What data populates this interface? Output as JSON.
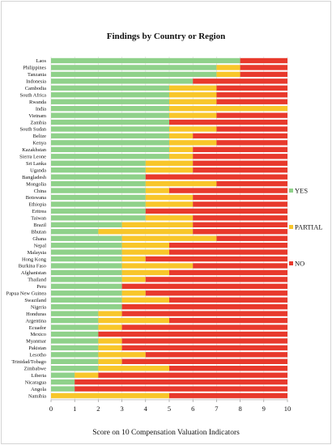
{
  "chart_data": {
    "type": "bar",
    "orientation": "horizontal",
    "stacked": true,
    "title": "Findings by Country or Region",
    "xlabel": "Score on 10 Compensation Valuation Indicators",
    "ylabel": "",
    "xlim": [
      0,
      10
    ],
    "xticks": [
      "0",
      "1",
      "2",
      "3",
      "4",
      "5",
      "6",
      "7",
      "8",
      "9",
      "10"
    ],
    "grid": true,
    "legend_position": "right",
    "categories": [
      "Laos",
      "Philippines",
      "Tanzania",
      "Indonesia",
      "Cambodia",
      "South Africa",
      "Rwanda",
      "India",
      "Vietnam",
      "Zambia",
      "South Sudan",
      "Belize",
      "Kenya",
      "Kazakhstan",
      "Sierra Leone",
      "Sri Lanka",
      "Uganda",
      "Bangladesh",
      "Mongolia",
      "China",
      "Botswana",
      "Ethiopia",
      "Eritrea",
      "Taiwan",
      "Brazil",
      "Bhutan",
      "Ghana",
      "Nepal",
      "Malaysia",
      "Hong Kong",
      "Burkina Faso",
      "Afghanistan",
      "Thailand",
      "Peru",
      "Papua New Guinea",
      "Swaziland",
      "Nigeria",
      "Honduras",
      "Argentina",
      "Ecuador",
      "Mexico",
      "Myanmar",
      "Pakistan",
      "Lesotho",
      "Trinidad/Tobago",
      "Zimbabwe",
      "Liberia",
      "Nicaragua",
      "Angola",
      "Namibia"
    ],
    "series": [
      {
        "name": "YES",
        "color": "#8fd18a",
        "values": [
          8,
          7,
          7,
          6,
          5,
          5,
          5,
          5,
          5,
          5,
          5,
          5,
          5,
          5,
          5,
          4,
          4,
          4,
          4,
          4,
          4,
          4,
          4,
          4,
          3,
          2,
          3,
          3,
          3,
          3,
          3,
          3,
          3,
          3,
          3,
          3,
          3,
          2,
          2,
          2,
          2,
          2,
          2,
          2,
          2,
          2,
          1,
          1,
          1,
          0
        ]
      },
      {
        "name": "PARTIAL",
        "color": "#f8c62a",
        "values": [
          0,
          1,
          1,
          0,
          2,
          2,
          2,
          5,
          2,
          0,
          2,
          1,
          2,
          1,
          1,
          2,
          2,
          0,
          3,
          1,
          2,
          2,
          0,
          2,
          3,
          4,
          4,
          2,
          2,
          1,
          3,
          2,
          1,
          0,
          1,
          2,
          0,
          1,
          3,
          1,
          0,
          1,
          1,
          2,
          1,
          3,
          1,
          0,
          0,
          5
        ]
      },
      {
        "name": "NO",
        "color": "#e8392c",
        "values": [
          2,
          2,
          2,
          4,
          3,
          3,
          3,
          0,
          3,
          5,
          3,
          4,
          3,
          4,
          4,
          4,
          4,
          6,
          3,
          5,
          4,
          4,
          6,
          4,
          4,
          4,
          3,
          5,
          5,
          6,
          4,
          5,
          6,
          7,
          6,
          5,
          7,
          7,
          5,
          7,
          8,
          7,
          7,
          6,
          7,
          5,
          8,
          9,
          9,
          5
        ]
      }
    ]
  }
}
